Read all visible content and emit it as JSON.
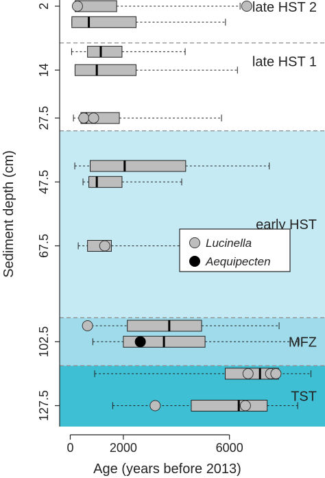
{
  "chart_data": {
    "type": "boxplot",
    "orientation": "horizontal",
    "title": "",
    "xlabel": "Age (years before 2013)",
    "ylabel": "Sediment depth (cm)",
    "xlim": [
      -400,
      9600
    ],
    "x_ticks": [
      0,
      2000,
      6000
    ],
    "y_ticks": [
      {
        "label": "2",
        "slot": 0
      },
      {
        "label": "14",
        "slot": 4
      },
      {
        "label": "27.5",
        "slot": 7
      },
      {
        "label": "47.5",
        "slot": 11
      },
      {
        "label": "67.5",
        "slot": 15
      },
      {
        "label": "102.5",
        "slot": 21
      },
      {
        "label": "127.5",
        "slot": 25
      }
    ],
    "zones": [
      {
        "label": "late HST 2",
        "slot_from": -0.6,
        "slot_to": 2.3,
        "color": "#ffffff"
      },
      {
        "label": "late HST 1",
        "slot_from": 2.3,
        "slot_to": 7.8,
        "color": "#ffffff"
      },
      {
        "label": "early HST",
        "slot_from": 7.8,
        "slot_to": 19.5,
        "color": "#c5eaf4"
      },
      {
        "label": "MFZ",
        "slot_from": 19.5,
        "slot_to": 22.5,
        "color": "#9fdbea"
      },
      {
        "label": "TST",
        "slot_from": 22.5,
        "slot_to": 26.4,
        "color": "#3fbfd4"
      }
    ],
    "box_color": "#bdbdbd",
    "boxes": [
      {
        "slot": 0,
        "whisker_low": 180,
        "q1": 180,
        "median": 310,
        "q3": 1750,
        "whisker_high": 6400,
        "points": [
          {
            "x": 6650,
            "taxon": "Lucinella"
          },
          {
            "x": 270,
            "taxon": "Lucinella"
          }
        ]
      },
      {
        "slot": 1,
        "whisker_low": 60,
        "q1": 60,
        "median": 700,
        "q3": 2480,
        "whisker_high": 5850,
        "points": []
      },
      {
        "slot": 2.85,
        "whisker_low": 50,
        "q1": 650,
        "median": 1150,
        "q3": 1950,
        "whisker_high": 4330,
        "points": []
      },
      {
        "slot": 4,
        "whisker_low": 180,
        "q1": 180,
        "median": 1000,
        "q3": 2480,
        "whisker_high": 6300,
        "points": []
      },
      {
        "slot": 7,
        "whisker_low": 120,
        "q1": 400,
        "median": 600,
        "q3": 1850,
        "whisker_high": 5700,
        "points": [
          {
            "x": 510,
            "taxon": "Lucinella"
          },
          {
            "x": 880,
            "taxon": "Lucinella"
          }
        ]
      },
      {
        "slot": 10,
        "whisker_low": 170,
        "q1": 750,
        "median": 2050,
        "q3": 4350,
        "whisker_high": 7500,
        "points": []
      },
      {
        "slot": 11,
        "whisker_low": 480,
        "q1": 700,
        "median": 1000,
        "q3": 1950,
        "whisker_high": 4200,
        "points": []
      },
      {
        "slot": 15,
        "whisker_low": 300,
        "q1": 650,
        "median": 1300,
        "q3": 1550,
        "whisker_high": 8200,
        "points": [
          {
            "x": 1300,
            "taxon": "Lucinella"
          }
        ]
      },
      {
        "slot": 20,
        "whisker_low": 650,
        "q1": 2150,
        "median": 3730,
        "q3": 4950,
        "whisker_high": 7870,
        "points": [
          {
            "x": 650,
            "taxon": "Lucinella"
          }
        ]
      },
      {
        "slot": 21,
        "whisker_low": 850,
        "q1": 2000,
        "median": 3530,
        "q3": 5080,
        "whisker_high": 8620,
        "points": [
          {
            "x": 2640,
            "taxon": "Aequipecten"
          }
        ]
      },
      {
        "slot": 23,
        "whisker_low": 920,
        "q1": 5840,
        "median": 7150,
        "q3": 7850,
        "whisker_high": 9070,
        "points": [
          {
            "x": 6700,
            "taxon": "Lucinella"
          },
          {
            "x": 7550,
            "taxon": "Lucinella"
          },
          {
            "x": 7750,
            "taxon": "Lucinella"
          }
        ]
      },
      {
        "slot": 25,
        "whisker_low": 1600,
        "q1": 4560,
        "median": 6350,
        "q3": 7420,
        "whisker_high": 8570,
        "points": [
          {
            "x": 3200,
            "taxon": "Lucinella"
          },
          {
            "x": 6600,
            "taxon": "Lucinella"
          }
        ]
      }
    ],
    "legend": {
      "placement": "right-middle",
      "entries": [
        {
          "label": "Lucinella",
          "color": "#bdbdbd"
        },
        {
          "label": "Aequipecten",
          "color": "#000000"
        }
      ]
    },
    "grid": false
  }
}
